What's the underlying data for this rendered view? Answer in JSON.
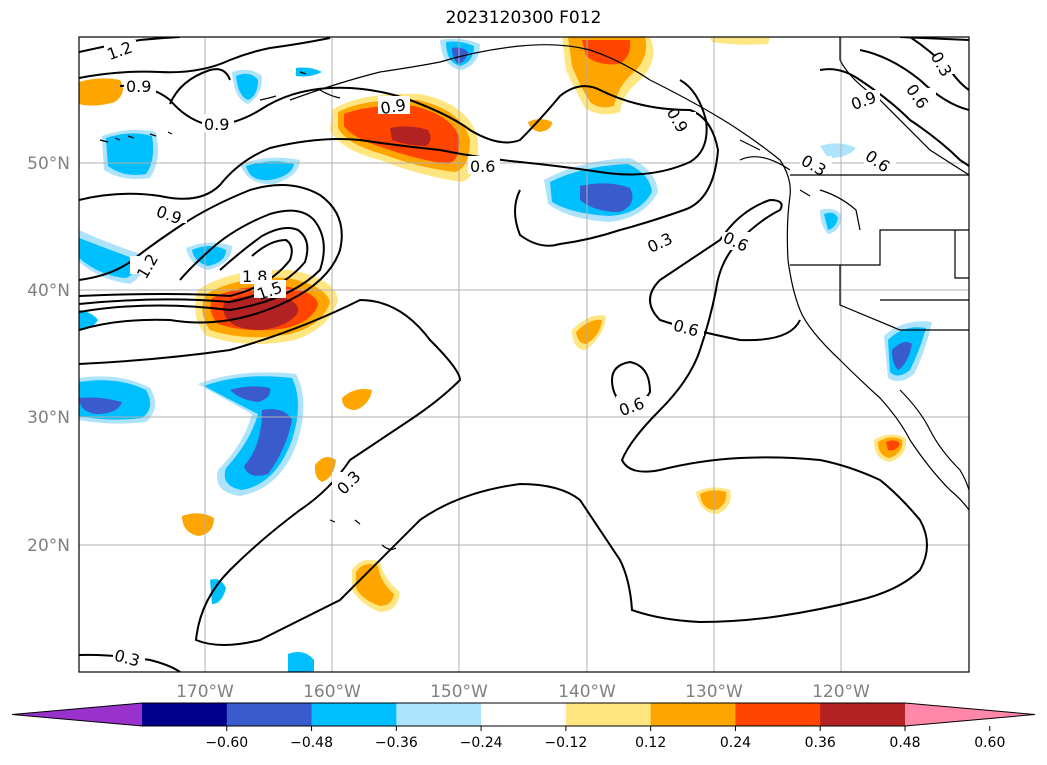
{
  "title": "2023120300 F012",
  "axes": {
    "lat_labels": [
      "50°N",
      "40°N",
      "30°N",
      "20°N"
    ],
    "lon_labels": [
      "170°W",
      "160°W",
      "150°W",
      "140°W",
      "130°W",
      "120°W"
    ],
    "grid": true
  },
  "colorbar": {
    "orientation": "horizontal",
    "extend": "both",
    "ticks": [
      "−0.60",
      "−0.48",
      "−0.36",
      "−0.24",
      "−0.12",
      "0.12",
      "0.24",
      "0.36",
      "0.48",
      "0.60"
    ],
    "colors": [
      "#9932CC",
      "#00008B",
      "#3A5BCC",
      "#00BFFF",
      "#ADE3FB",
      "#FFFFFF",
      "#FFE680",
      "#FFA500",
      "#FF4500",
      "#B22222",
      "#FF88AA"
    ]
  },
  "contour_labels": [
    "1.2",
    "0.9",
    "0.9",
    "0.9",
    "0.9",
    "0.9",
    "0.9",
    "0.6",
    "0.6",
    "0.6",
    "0.6",
    "0.6",
    "0.6",
    "0.3",
    "0.3",
    "0.3",
    "0.3",
    "1.8",
    "1.5",
    "1.2"
  ]
}
